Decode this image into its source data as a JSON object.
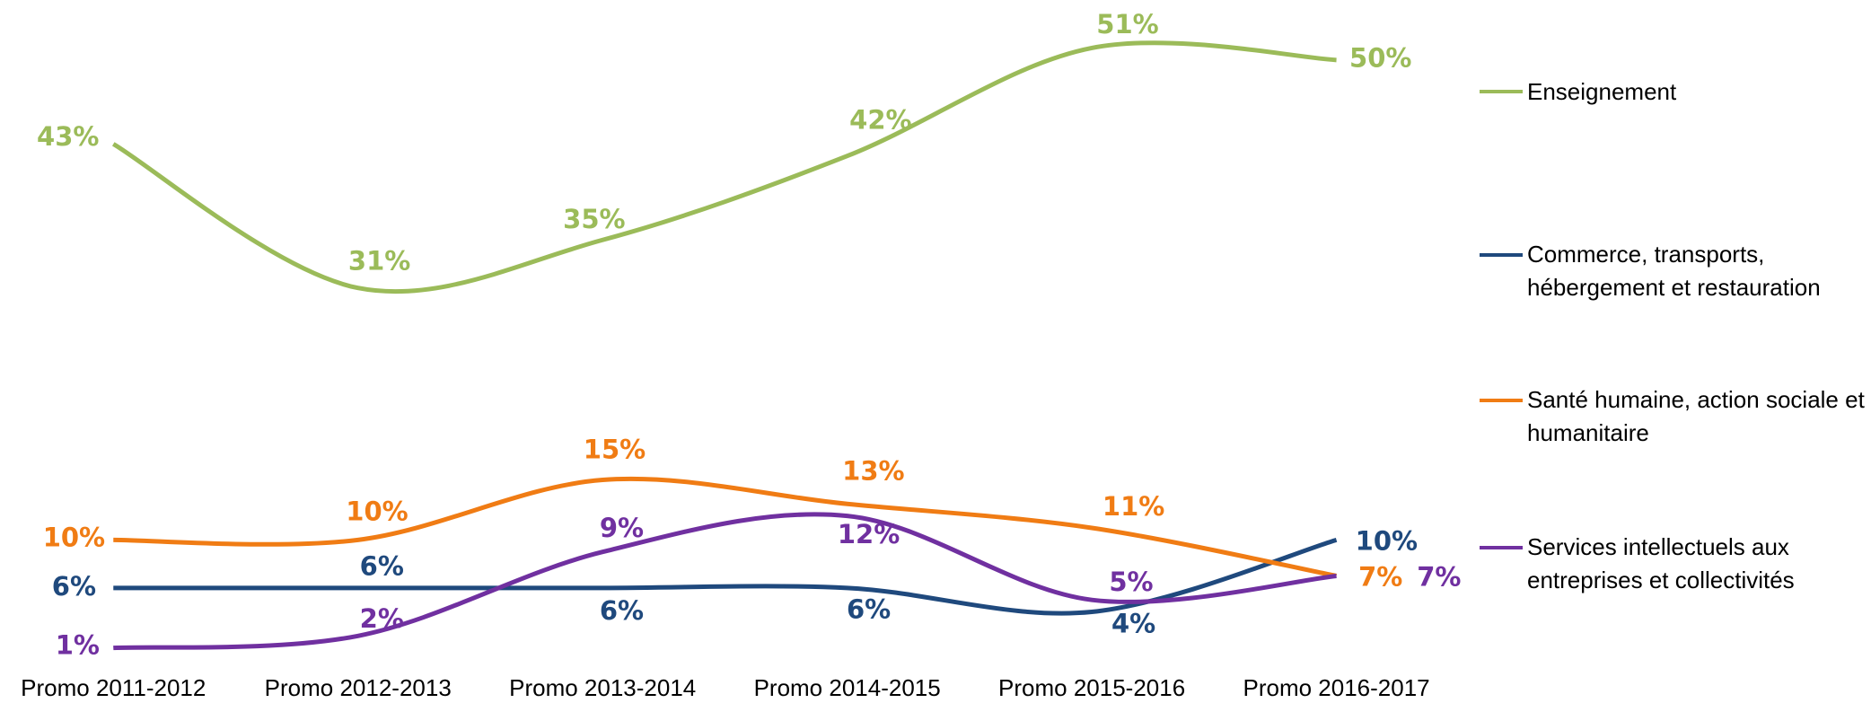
{
  "chart_data": {
    "type": "line",
    "categories": [
      "Promo 2011-2012",
      "Promo 2012-2013",
      "Promo 2013-2014",
      "Promo 2014-2015",
      "Promo 2015-2016",
      "Promo 2016-2017"
    ],
    "ylim": [
      0,
      55
    ],
    "series": [
      {
        "name": "Enseignement",
        "color": "#9bbb59",
        "values": [
          43,
          31,
          35,
          42,
          51,
          50
        ],
        "value_labels": [
          "43%",
          "31%",
          "35%",
          "42%",
          "51%",
          "50%"
        ]
      },
      {
        "name": "Commerce, transports, hébergement et restauration",
        "color": "#1f497d",
        "values": [
          6,
          6,
          6,
          6,
          4,
          10
        ],
        "value_labels": [
          "6%",
          "6%",
          "6%",
          "6%",
          "4%",
          "10%"
        ]
      },
      {
        "name": "Santé humaine, action sociale et humanitaire",
        "color": "#f07c14",
        "values": [
          10,
          10,
          15,
          13,
          11,
          7
        ],
        "value_labels": [
          "10%",
          "10%",
          "15%",
          "13%",
          "11%",
          "7%"
        ]
      },
      {
        "name": "Services intellectuels aux entreprises et collectivités",
        "color": "#7030a0",
        "values": [
          1,
          2,
          9,
          12,
          5,
          7
        ],
        "value_labels": [
          "1%",
          "2%",
          "9%",
          "12%",
          "5%",
          "7%"
        ]
      }
    ]
  }
}
